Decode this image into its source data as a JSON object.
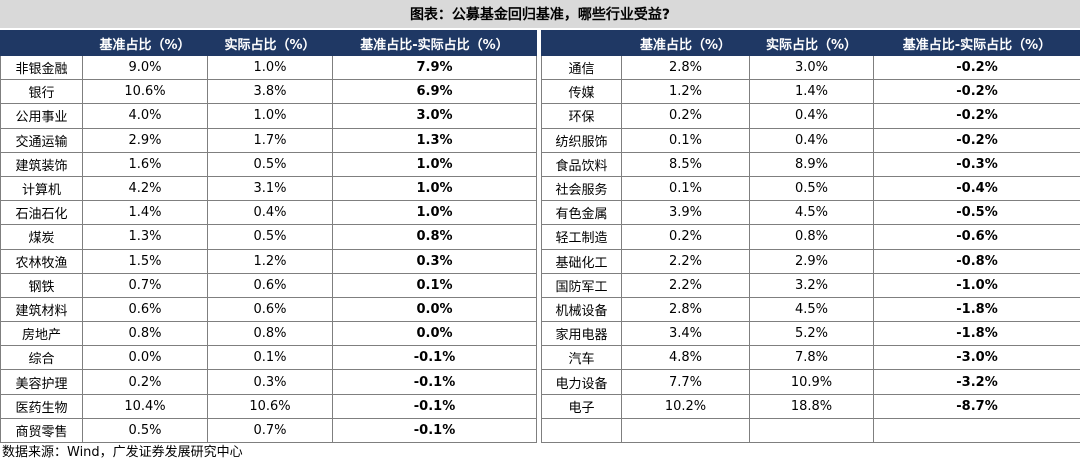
{
  "title": "图表：公募基金回归基准，哪些行业受益?",
  "headers": [
    "",
    "基准占比（%）",
    "实际占比（%）",
    "基准占比-实际占比（%）"
  ],
  "left_rows": [
    [
      "非银金融",
      "9.0%",
      "1.0%",
      "7.9%"
    ],
    [
      "银行",
      "10.6%",
      "3.8%",
      "6.9%"
    ],
    [
      "公用事业",
      "4.0%",
      "1.0%",
      "3.0%"
    ],
    [
      "交通运输",
      "2.9%",
      "1.7%",
      "1.3%"
    ],
    [
      "建筑装饰",
      "1.6%",
      "0.5%",
      "1.0%"
    ],
    [
      "计算机",
      "4.2%",
      "3.1%",
      "1.0%"
    ],
    [
      "石油石化",
      "1.4%",
      "0.4%",
      "1.0%"
    ],
    [
      "煤炭",
      "1.3%",
      "0.5%",
      "0.8%"
    ],
    [
      "农林牧渔",
      "1.5%",
      "1.2%",
      "0.3%"
    ],
    [
      "钢铁",
      "0.7%",
      "0.6%",
      "0.1%"
    ],
    [
      "建筑材料",
      "0.6%",
      "0.6%",
      "0.0%"
    ],
    [
      "房地产",
      "0.8%",
      "0.8%",
      "0.0%"
    ],
    [
      "综合",
      "0.0%",
      "0.1%",
      "-0.1%"
    ],
    [
      "美容护理",
      "0.2%",
      "0.3%",
      "-0.1%"
    ],
    [
      "医药生物",
      "10.4%",
      "10.6%",
      "-0.1%"
    ],
    [
      "商贸零售",
      "0.5%",
      "0.7%",
      "-0.1%"
    ]
  ],
  "right_rows": [
    [
      "通信",
      "2.8%",
      "3.0%",
      "-0.2%"
    ],
    [
      "传媒",
      "1.2%",
      "1.4%",
      "-0.2%"
    ],
    [
      "环保",
      "0.2%",
      "0.4%",
      "-0.2%"
    ],
    [
      "纺织服饰",
      "0.1%",
      "0.4%",
      "-0.2%"
    ],
    [
      "食品饮料",
      "8.5%",
      "8.9%",
      "-0.3%"
    ],
    [
      "社会服务",
      "0.1%",
      "0.5%",
      "-0.4%"
    ],
    [
      "有色金属",
      "3.9%",
      "4.5%",
      "-0.5%"
    ],
    [
      "轻工制造",
      "0.2%",
      "0.8%",
      "-0.6%"
    ],
    [
      "基础化工",
      "2.2%",
      "2.9%",
      "-0.8%"
    ],
    [
      "国防军工",
      "2.2%",
      "3.2%",
      "-1.0%"
    ],
    [
      "机械设备",
      "2.8%",
      "4.5%",
      "-1.8%"
    ],
    [
      "家用电器",
      "3.4%",
      "5.2%",
      "-1.8%"
    ],
    [
      "汽车",
      "4.8%",
      "7.8%",
      "-3.0%"
    ],
    [
      "电力设备",
      "7.7%",
      "10.9%",
      "-3.2%"
    ],
    [
      "电子",
      "10.2%",
      "18.8%",
      "-8.7%"
    ],
    [
      "",
      "",
      "",
      ""
    ]
  ],
  "source": "数据来源：Wind，广发证券发展研究中心",
  "colors": {
    "header_bg": "#1f3864",
    "header_text": "#ffffff",
    "title_bg": "#d9d9d9",
    "grid": "#7f7f7f"
  }
}
